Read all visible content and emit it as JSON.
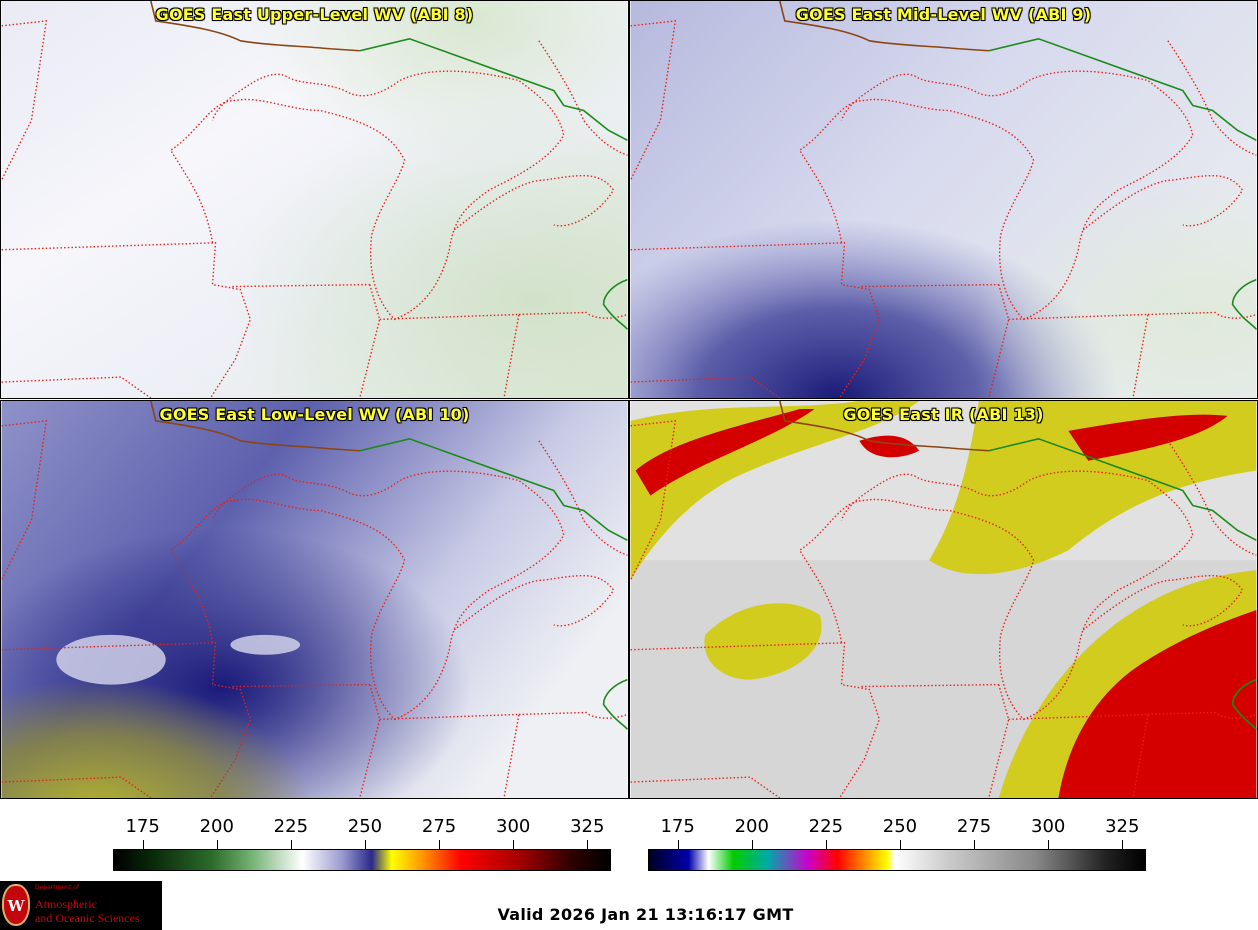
{
  "panels": {
    "upper_level": {
      "title": "GOES East Upper-Level WV (ABI 8)"
    },
    "mid_level": {
      "title": "GOES East Mid-Level WV (ABI 9)"
    },
    "low_level": {
      "title": "GOES East Low-Level WV (ABI 10)"
    },
    "infrared": {
      "title": "GOES East IR (ABI 13)"
    }
  },
  "colorbars": {
    "water_vapor": {
      "ticks": [
        "175",
        "200",
        "225",
        "250",
        "275",
        "300",
        "325"
      ],
      "min": 165,
      "max": 333
    },
    "infrared": {
      "ticks": [
        "175",
        "200",
        "225",
        "250",
        "275",
        "300",
        "325"
      ],
      "min": 165,
      "max": 333
    }
  },
  "footer": {
    "valid_time": "Valid 2026 Jan 21 13:16:17 GMT",
    "logo": {
      "dept": "Department of",
      "line1": "Atmospheric",
      "line2": "and Oceanic Sciences",
      "seal": "W"
    }
  },
  "colors": {
    "border_state": "#e8201a",
    "border_country": "#1a8a1a",
    "border_lake_shore": "#8b4513",
    "title_text": "#ffff33"
  }
}
